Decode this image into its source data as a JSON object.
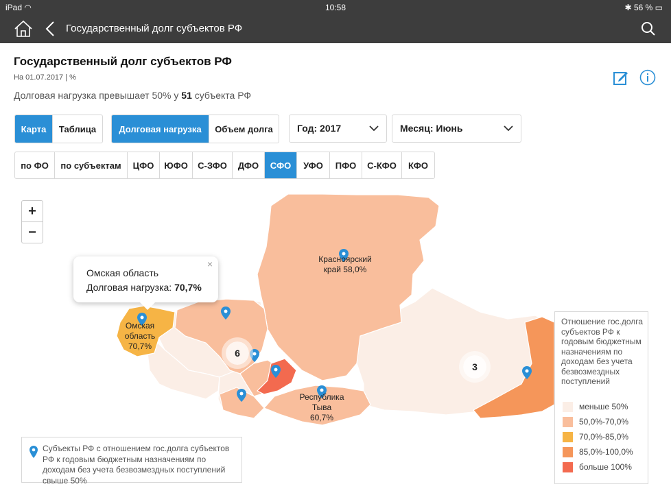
{
  "status_bar": {
    "device": "iPad",
    "time": "10:58",
    "battery": "56 %"
  },
  "nav": {
    "title": "Государственный долг субъектов РФ"
  },
  "header": {
    "title": "Государственный долг субъектов РФ",
    "as_of": "На 01.07.2017 | %",
    "summary_prefix": "Долговая нагрузка превышает 50% у ",
    "summary_count": "51",
    "summary_suffix": " субъекта РФ"
  },
  "view_toggle": {
    "map": "Карта",
    "table": "Таблица",
    "active": "Карта"
  },
  "metric_toggle": {
    "debt_load": "Долговая нагрузка",
    "debt_volume": "Объем долга",
    "active": "Долговая нагрузка"
  },
  "year_select": {
    "label": "Год: 2017"
  },
  "month_select": {
    "label": "Месяц: Июнь"
  },
  "district_tabs": {
    "items": [
      "по ФО",
      "по субъектам",
      "ЦФО",
      "ЮФО",
      "С-ЗФО",
      "ДФО",
      "СФО",
      "УФО",
      "ПФО",
      "С-КФО",
      "КФО"
    ],
    "active": "СФО"
  },
  "zoom": {
    "in": "+",
    "out": "−"
  },
  "tooltip": {
    "region": "Омская область",
    "metric": "Долговая нагрузка: ",
    "value": "70,7%",
    "close": "×"
  },
  "map_labels": {
    "krasnoyarsk": [
      "Красноярский",
      "край 58,0%"
    ],
    "omsk": [
      "Омская",
      "область",
      "70,7%"
    ],
    "tyva": [
      "Республика",
      "Тыва",
      "60,7%"
    ]
  },
  "clusters": {
    "west": "6",
    "east": "3"
  },
  "legend": {
    "title": "Отношение гос.долга субъектов РФ к годовым бюджетным назначениям по доходам без учета безвозмездных поступлений",
    "items": [
      {
        "label": "меньше 50%",
        "color": "#fbeee6"
      },
      {
        "label": "50,0%-70,0%",
        "color": "#f9be9c"
      },
      {
        "label": "70,0%-85,0%",
        "color": "#f6b445"
      },
      {
        "label": "85,0%-100,0%",
        "color": "#f5965a"
      },
      {
        "label": "больше 100%",
        "color": "#f36a4f"
      }
    ]
  },
  "note": {
    "text": "Субъекты РФ с отношением гос.долга субъектов РФ к годовым бюджетным назначениям по доходам без учета безвозмездных поступлений свыше 50%"
  },
  "colors": {
    "accent": "#2a8fd6",
    "nav_bg": "#3d3d3d",
    "marker": "#2a8fd6"
  }
}
